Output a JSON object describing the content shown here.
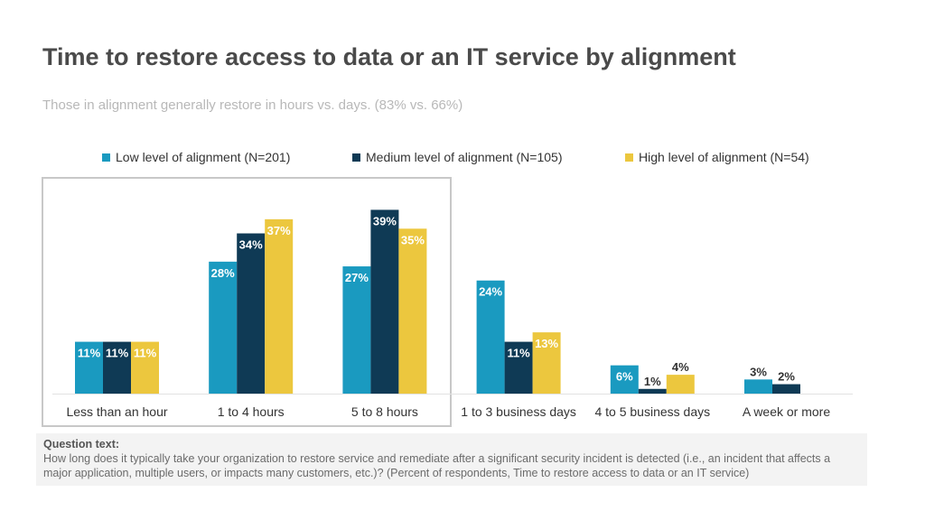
{
  "title": "Time to restore access to data or an IT service by alignment",
  "subtitle": "Those in alignment generally restore in hours vs. days. (83% vs. 66%)",
  "colors": {
    "low": "#1a9ac0",
    "medium": "#0f3a55",
    "high": "#ecc73e"
  },
  "chart_data": {
    "type": "bar",
    "title": "Time to restore access to data or an IT service by alignment",
    "subtitle": "Those in alignment generally restore in hours vs. days. (83% vs. 66%)",
    "categories": [
      "Less than an hour",
      "1 to 4 hours",
      "5 to 8 hours",
      "1 to 3 business days",
      "4 to 5 business days",
      "A week or more"
    ],
    "series": [
      {
        "name": "Low level of alignment (N=201)",
        "color": "#1a9ac0",
        "values": [
          11,
          28,
          27,
          24,
          6,
          3
        ],
        "labels": [
          "11%",
          "28%",
          "27%",
          "24%",
          "6%",
          "3%"
        ]
      },
      {
        "name": "Medium level of alignment (N=105)",
        "color": "#0f3a55",
        "values": [
          11,
          34,
          39,
          11,
          1,
          2
        ],
        "labels": [
          "11%",
          "34%",
          "39%",
          "11%",
          "1%",
          "2%"
        ]
      },
      {
        "name": "High level of alignment (N=54)",
        "color": "#ecc73e",
        "values": [
          11,
          37,
          35,
          13,
          4,
          0
        ],
        "labels": [
          "11%",
          "37%",
          "35%",
          "13%",
          "4%",
          ""
        ]
      }
    ],
    "legend_position": "top",
    "grid": false,
    "unit": "%"
  },
  "question": {
    "label": "Question text:",
    "text": "How long does it typically take your organization to restore service and remediate after a significant security incident is detected (i.e., an incident that affects a major application, multiple users, or impacts many customers, etc.)? (Percent of respondents, Time to restore access to data or an IT service)"
  }
}
